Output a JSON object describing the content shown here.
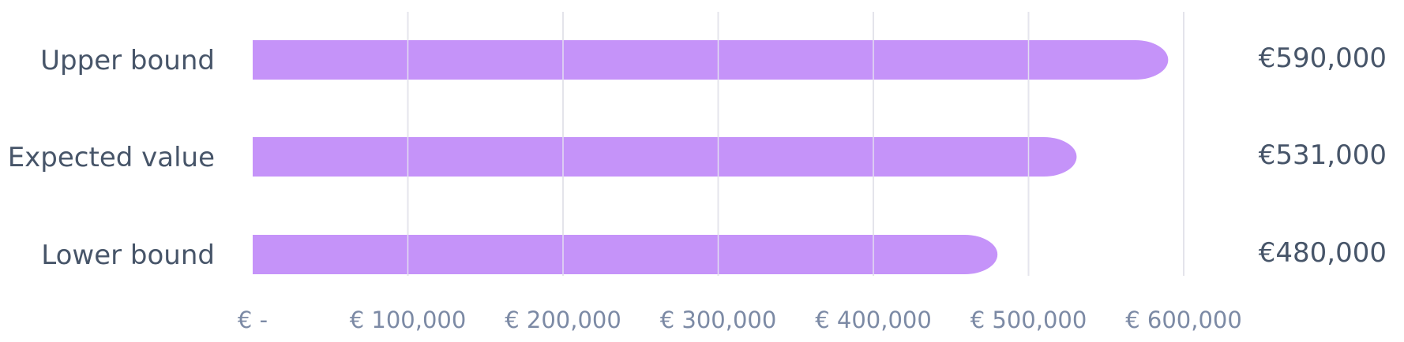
{
  "chart_data": {
    "type": "bar",
    "orientation": "horizontal",
    "categories": [
      "Upper bound",
      "Expected value",
      "Lower bound"
    ],
    "values": [
      590000,
      531000,
      480000
    ],
    "value_labels": [
      "€590,000",
      "€531,000",
      "€480,000"
    ],
    "xlim": [
      0,
      650000
    ],
    "x_ticks": [
      0,
      100000,
      200000,
      300000,
      400000,
      500000,
      600000
    ],
    "x_tick_labels": [
      "€ -",
      "€ 100,000",
      "€ 200,000",
      "€ 300,000",
      "€ 400,000",
      "€ 500,000",
      "€ 600,000"
    ],
    "grid": true,
    "legend": "none",
    "bar_color": "#c593f9",
    "text_color": "#475569",
    "tick_color": "#7c8aa5",
    "grid_color": "#e2e2e2"
  }
}
